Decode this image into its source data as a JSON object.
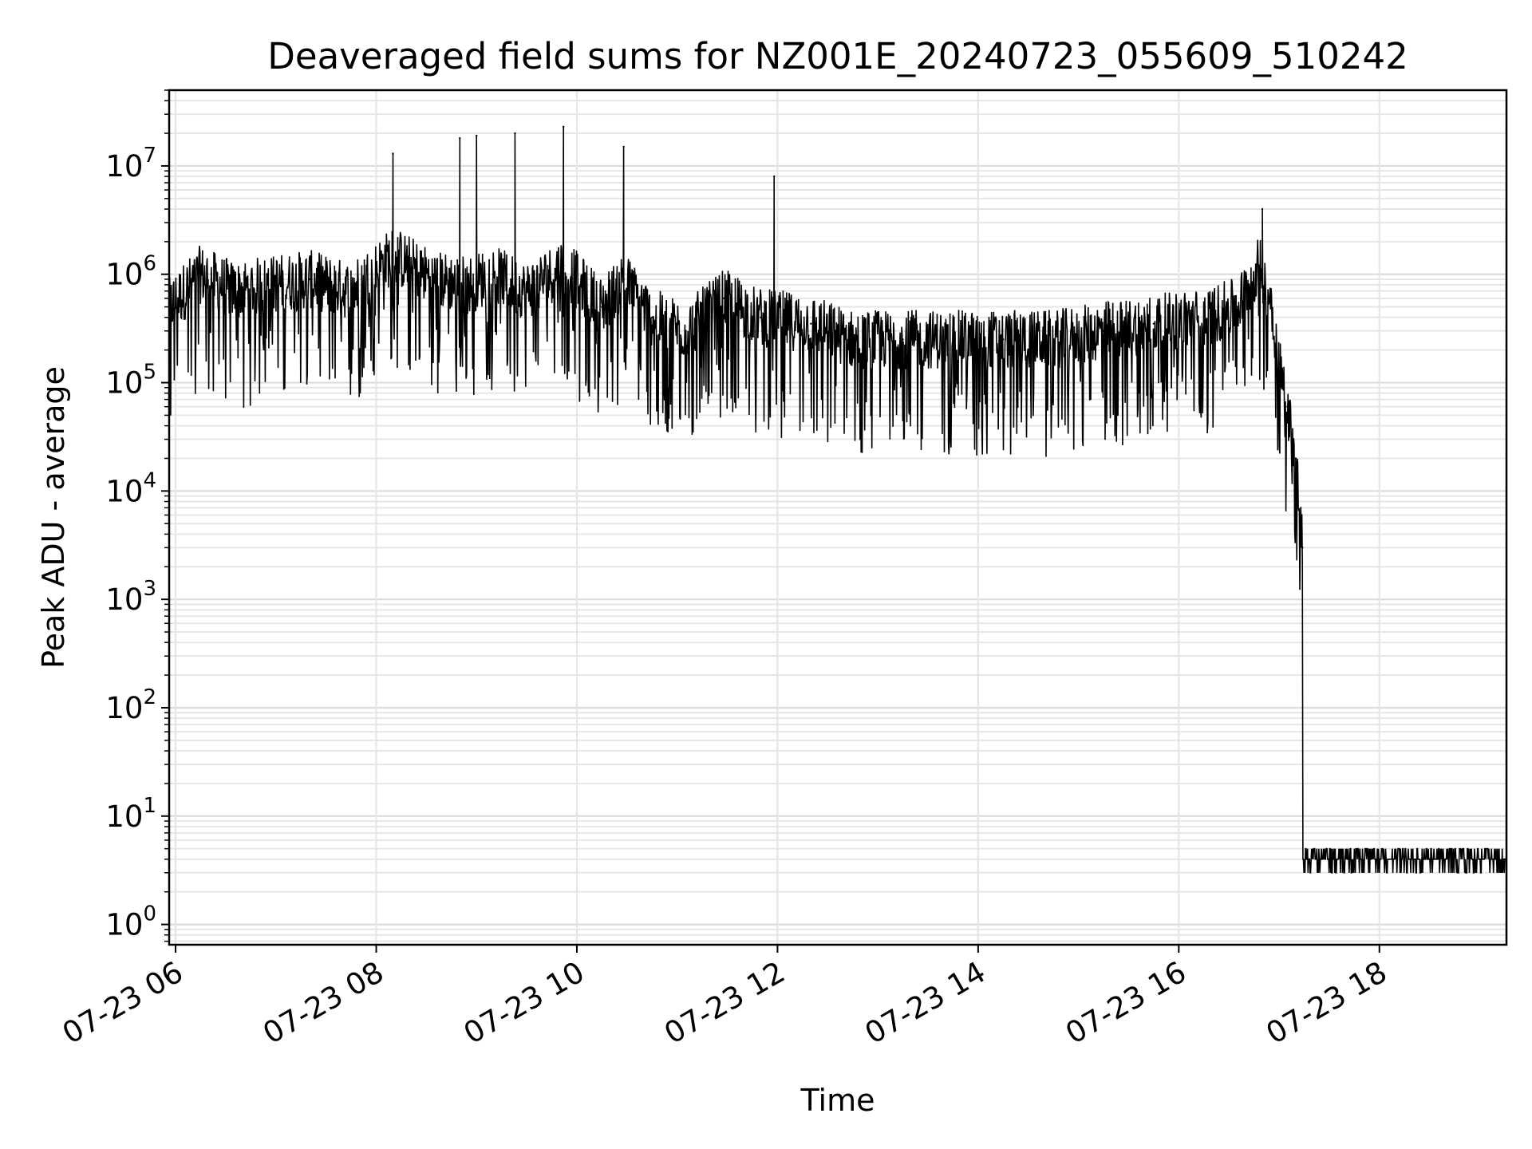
{
  "chart_data": {
    "type": "line",
    "title": "Deaveraged field sums for NZ001E_20240723_055609_510242",
    "xlabel": "Time",
    "ylabel": "Peak ADU - average",
    "xscale": "time",
    "yscale": "log",
    "xlim": [
      "2024-07-23T05:56:09",
      "2024-07-23T19:16:00"
    ],
    "ylim": [
      0.65,
      50000000
    ],
    "grid": true,
    "legend": "none",
    "line_color": "#000000",
    "x_ticks": [
      {
        "time": "2024-07-23T06:00",
        "label": "07-23 06"
      },
      {
        "time": "2024-07-23T08:00",
        "label": "07-23 08"
      },
      {
        "time": "2024-07-23T10:00",
        "label": "07-23 10"
      },
      {
        "time": "2024-07-23T12:00",
        "label": "07-23 12"
      },
      {
        "time": "2024-07-23T14:00",
        "label": "07-23 14"
      },
      {
        "time": "2024-07-23T16:00",
        "label": "07-23 16"
      },
      {
        "time": "2024-07-23T18:00",
        "label": "07-23 18"
      }
    ],
    "y_ticks": [
      {
        "value": 1,
        "base": "10",
        "exp": "0"
      },
      {
        "value": 10,
        "base": "10",
        "exp": "1"
      },
      {
        "value": 100,
        "base": "10",
        "exp": "2"
      },
      {
        "value": 1000,
        "base": "10",
        "exp": "3"
      },
      {
        "value": 10000,
        "base": "10",
        "exp": "4"
      },
      {
        "value": 100000,
        "base": "10",
        "exp": "5"
      },
      {
        "value": 1000000,
        "base": "10",
        "exp": "6"
      },
      {
        "value": 10000000,
        "base": "10",
        "exp": "7"
      }
    ],
    "series": [
      {
        "x": [
          "2024-07-23T05:56",
          "2024-07-23T06:15",
          "2024-07-23T06:35",
          "2024-07-23T06:55",
          "2024-07-23T07:20",
          "2024-07-23T07:45",
          "2024-07-23T08:10",
          "2024-07-23T08:35",
          "2024-07-23T08:55",
          "2024-07-23T09:10",
          "2024-07-23T09:30",
          "2024-07-23T09:52",
          "2024-07-23T10:15",
          "2024-07-23T10:28",
          "2024-07-23T10:45",
          "2024-07-23T11:05",
          "2024-07-23T11:28",
          "2024-07-23T11:50",
          "2024-07-23T12:20",
          "2024-07-23T12:45",
          "2024-07-23T13:15",
          "2024-07-23T13:45",
          "2024-07-23T14:15",
          "2024-07-23T14:45",
          "2024-07-23T15:15",
          "2024-07-23T15:45",
          "2024-07-23T16:15",
          "2024-07-23T16:35",
          "2024-07-23T16:48",
          "2024-07-23T16:55",
          "2024-07-23T17:00",
          "2024-07-23T17:05",
          "2024-07-23T17:10",
          "2024-07-23T17:14",
          "2024-07-23T17:18",
          "2024-07-23T17:30",
          "2024-07-23T18:00",
          "2024-07-23T18:30",
          "2024-07-23T19:00",
          "2024-07-23T19:15"
        ],
        "y": [
          500000,
          1000000,
          700000,
          800000,
          900000,
          700000,
          1500000,
          900000,
          800000,
          1000000,
          700000,
          1200000,
          500000,
          900000,
          400000,
          300000,
          600000,
          400000,
          350000,
          250000,
          250000,
          250000,
          250000,
          250000,
          300000,
          350000,
          400000,
          500000,
          1200000,
          600000,
          150000,
          60000,
          20000,
          3000,
          4,
          4,
          4,
          4,
          4,
          4
        ]
      }
    ],
    "peaks": [
      {
        "x": "2024-07-23T08:10",
        "y": 13000000
      },
      {
        "x": "2024-07-23T08:50",
        "y": 18000000
      },
      {
        "x": "2024-07-23T09:00",
        "y": 19000000
      },
      {
        "x": "2024-07-23T09:23",
        "y": 20000000
      },
      {
        "x": "2024-07-23T09:52",
        "y": 23000000
      },
      {
        "x": "2024-07-23T10:28",
        "y": 15000000
      },
      {
        "x": "2024-07-23T11:58",
        "y": 8000000
      },
      {
        "x": "2024-07-23T16:50",
        "y": 4000000
      }
    ]
  }
}
